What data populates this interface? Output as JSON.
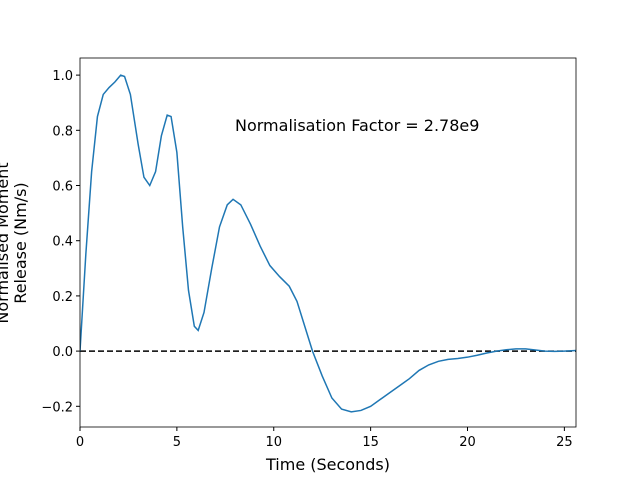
{
  "chart_data": {
    "type": "line",
    "xlabel": "Time (Seconds)",
    "ylabel": [
      "Normalised Moment",
      "Release (Nm/s)"
    ],
    "annotation": "Normalisation Factor = 2.78e9",
    "x": [
      0,
      0.3,
      0.6,
      0.9,
      1.2,
      1.5,
      1.8,
      2.1,
      2.3,
      2.6,
      3.0,
      3.3,
      3.6,
      3.9,
      4.2,
      4.5,
      4.7,
      5.0,
      5.3,
      5.6,
      5.9,
      6.1,
      6.4,
      6.8,
      7.2,
      7.6,
      7.9,
      8.3,
      8.8,
      9.3,
      9.8,
      10.3,
      10.8,
      11.2,
      11.6,
      12.0,
      12.5,
      13.0,
      13.5,
      14.0,
      14.5,
      15.0,
      15.5,
      16.0,
      16.5,
      17.0,
      17.5,
      18.0,
      18.5,
      19.0,
      19.5,
      20.0,
      20.5,
      21.0,
      21.5,
      22.0,
      22.5,
      23.0,
      23.5,
      24.0,
      24.5,
      25.0,
      25.6
    ],
    "series": [
      {
        "name": "moment",
        "color": "#1f77b4",
        "values": [
          0,
          0.35,
          0.65,
          0.85,
          0.93,
          0.955,
          0.975,
          1.0,
          0.995,
          0.93,
          0.75,
          0.63,
          0.6,
          0.65,
          0.78,
          0.855,
          0.85,
          0.72,
          0.45,
          0.22,
          0.09,
          0.075,
          0.14,
          0.3,
          0.45,
          0.53,
          0.55,
          0.53,
          0.46,
          0.38,
          0.31,
          0.27,
          0.235,
          0.18,
          0.09,
          0.0,
          -0.09,
          -0.17,
          -0.21,
          -0.22,
          -0.215,
          -0.2,
          -0.175,
          -0.15,
          -0.125,
          -0.1,
          -0.07,
          -0.05,
          -0.037,
          -0.03,
          -0.027,
          -0.022,
          -0.015,
          -0.007,
          0.0,
          0.005,
          0.008,
          0.008,
          0.004,
          0.0,
          -0.001,
          0.0,
          0.002
        ]
      }
    ],
    "hline": {
      "y": 0,
      "color": "#000000",
      "style": "dashed"
    },
    "xlim": [
      0,
      25.6
    ],
    "ylim": [
      -0.275,
      1.062
    ],
    "xticks": [
      0,
      5,
      10,
      15,
      20,
      25
    ],
    "yticks": [
      {
        "value": -0.2,
        "label": "−0.2"
      },
      {
        "value": 0.0,
        "label": "0.0"
      },
      {
        "value": 0.2,
        "label": "0.2"
      },
      {
        "value": 0.4,
        "label": "0.4"
      },
      {
        "value": 0.6,
        "label": "0.6"
      },
      {
        "value": 0.8,
        "label": "0.8"
      },
      {
        "value": 1.0,
        "label": "1.0"
      }
    ],
    "grid": false
  }
}
